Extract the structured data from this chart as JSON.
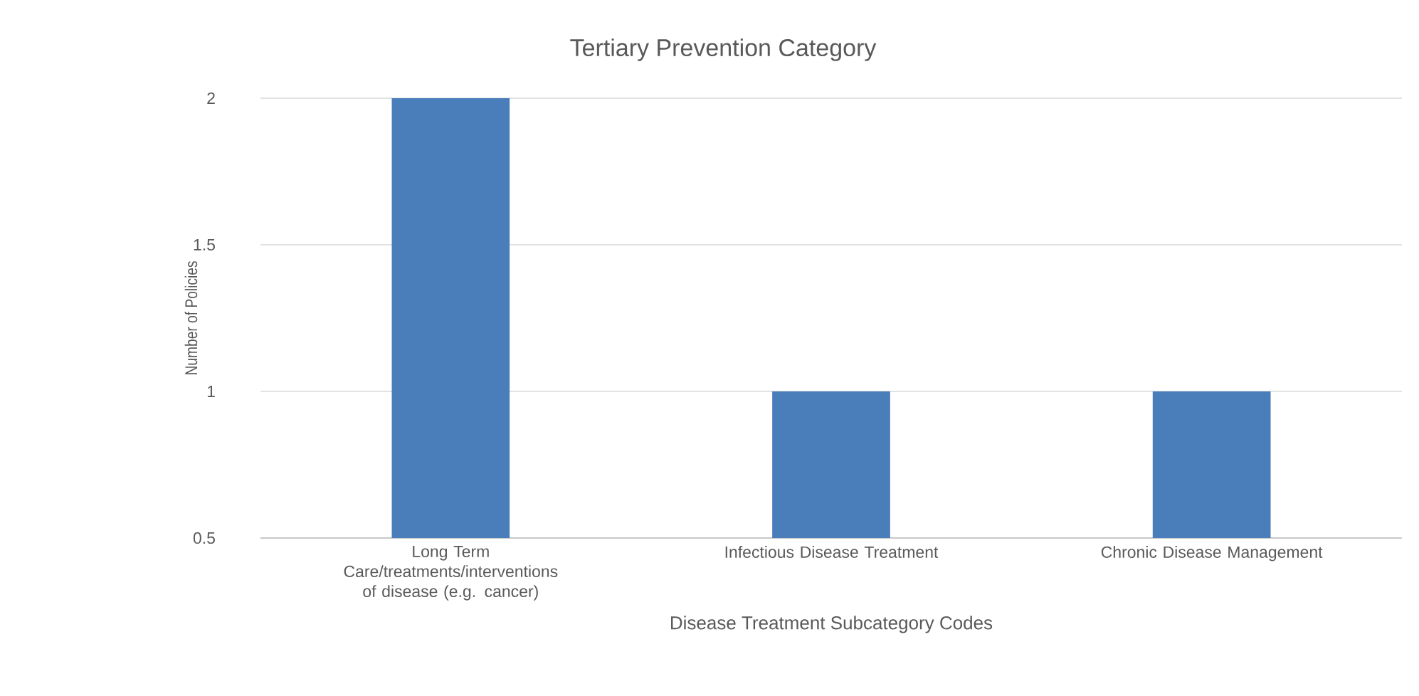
{
  "chart_data": {
    "type": "bar",
    "title": "Tertiary Prevention Category",
    "xlabel": "Disease Treatment Subcategory Codes",
    "ylabel": "Number of Policies",
    "categories": [
      "Long Term Care/treatments/interventions of disease (e.g. cancer)",
      "Infectious Disease Treatment",
      "Chronic Disease Management"
    ],
    "values": [
      2,
      1,
      1
    ],
    "color": "#4a7ebb",
    "ylim": [
      0.5,
      2
    ],
    "yticks": [
      0.5,
      1,
      1.5,
      2
    ],
    "grid": "y"
  }
}
